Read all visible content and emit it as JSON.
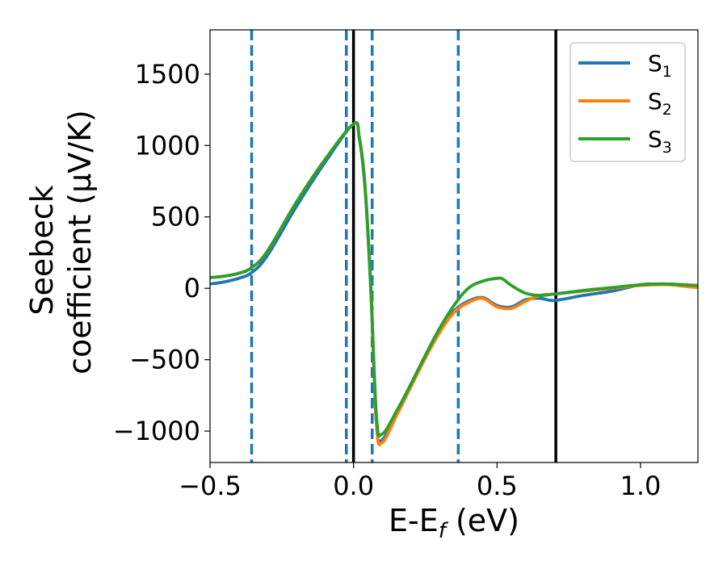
{
  "chart_data": {
    "type": "line",
    "xlabel": {
      "base": "E-E",
      "sub": "f",
      "suffix": " (eV)"
    },
    "ylabel": {
      "line1": "Seebeck",
      "line2": "coefficient  (μV/K)"
    },
    "xlim": [
      -0.5,
      1.2
    ],
    "ylim": [
      -1220,
      1810
    ],
    "xticks": [
      -0.5,
      0.0,
      0.5,
      1.0
    ],
    "xtick_labels": [
      "−0.5",
      "0.0",
      "0.5",
      "1.0"
    ],
    "yticks": [
      -1000,
      -500,
      0,
      500,
      1000,
      1500
    ],
    "ytick_labels": [
      "−1000",
      "−500",
      "0",
      "500",
      "1000",
      "1500"
    ],
    "grid": false,
    "legend_position": "top-right",
    "vlines_dashed": {
      "color": "#1f77b4",
      "x": [
        -0.355,
        -0.025,
        0.065,
        0.365
      ]
    },
    "vlines_solid": {
      "color": "#000000",
      "x": [
        0.0,
        0.705
      ]
    },
    "series": [
      {
        "name": {
          "base": "S",
          "sub": "1"
        },
        "color": "#1f77b4",
        "x": [
          -0.5,
          -0.45,
          -0.4,
          -0.355,
          -0.3,
          -0.2,
          -0.1,
          0.0,
          0.02,
          0.04,
          0.06,
          0.08,
          0.1,
          0.15,
          0.2,
          0.25,
          0.3,
          0.35,
          0.4,
          0.45,
          0.5,
          0.55,
          0.6,
          0.65,
          0.7,
          0.8,
          0.9,
          1.0,
          1.05,
          1.1,
          1.15,
          1.2
        ],
        "y": [
          30,
          45,
          70,
          110,
          230,
          570,
          880,
          1150,
          1050,
          700,
          0,
          -950,
          -1060,
          -880,
          -680,
          -480,
          -300,
          -160,
          -90,
          -65,
          -120,
          -130,
          -80,
          -70,
          -85,
          -50,
          -20,
          25,
          30,
          30,
          25,
          15
        ]
      },
      {
        "name": {
          "base": "S",
          "sub": "2"
        },
        "color": "#ff7f0e",
        "x": [
          -0.5,
          -0.45,
          -0.4,
          -0.355,
          -0.3,
          -0.2,
          -0.1,
          0.0,
          0.02,
          0.04,
          0.06,
          0.08,
          0.1,
          0.15,
          0.2,
          0.25,
          0.3,
          0.35,
          0.4,
          0.45,
          0.5,
          0.55,
          0.6,
          0.65,
          0.7,
          0.8,
          0.9,
          1.0,
          1.05,
          1.1,
          1.15,
          1.2
        ],
        "y": [
          75,
          85,
          105,
          145,
          260,
          600,
          900,
          1150,
          1060,
          720,
          20,
          -950,
          -1080,
          -890,
          -690,
          -490,
          -310,
          -170,
          -100,
          -70,
          -130,
          -140,
          -90,
          -50,
          -40,
          -20,
          0,
          20,
          25,
          25,
          15,
          5
        ]
      },
      {
        "name": {
          "base": "S",
          "sub": "3"
        },
        "color": "#2ca02c",
        "x": [
          -0.5,
          -0.45,
          -0.4,
          -0.355,
          -0.3,
          -0.2,
          -0.1,
          0.0,
          0.02,
          0.04,
          0.06,
          0.08,
          0.1,
          0.15,
          0.2,
          0.25,
          0.3,
          0.35,
          0.4,
          0.45,
          0.5,
          0.52,
          0.55,
          0.6,
          0.65,
          0.7,
          0.8,
          0.9,
          1.0,
          1.05,
          1.1,
          1.15,
          1.2
        ],
        "y": [
          75,
          85,
          105,
          145,
          260,
          600,
          900,
          1150,
          1060,
          720,
          20,
          -900,
          -1020,
          -860,
          -670,
          -470,
          -280,
          -120,
          0,
          50,
          70,
          65,
          20,
          -35,
          -50,
          -40,
          -15,
          5,
          25,
          30,
          30,
          25,
          20
        ]
      }
    ]
  }
}
